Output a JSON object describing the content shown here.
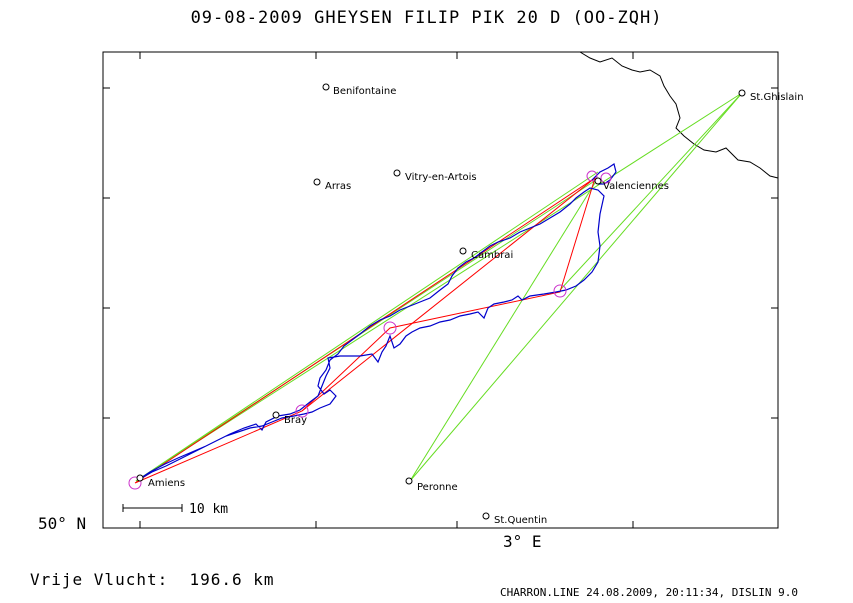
{
  "title": "09-08-2009   GHEYSEN FILIP   PIK 20 D (OO-ZQH)",
  "axis": {
    "lat_label": "50° N",
    "lon_label": "3° E"
  },
  "scale_bar": {
    "label": "10 km"
  },
  "flight": {
    "label": "Vrije Vlucht:",
    "distance": "196.6 km"
  },
  "footer": "CHARRON.LINE 24.08.2009, 20:11:34, DISLIN 9.0",
  "places": [
    {
      "name": "Benifontaine"
    },
    {
      "name": "Arras"
    },
    {
      "name": "Vitry-en-Artois"
    },
    {
      "name": "St.Ghislain"
    },
    {
      "name": "Valenciennes"
    },
    {
      "name": "Cambrai"
    },
    {
      "name": "Bray"
    },
    {
      "name": "Amiens"
    },
    {
      "name": "Peronne"
    },
    {
      "name": "St.Quentin"
    }
  ],
  "colors": {
    "track": "#0000cc",
    "task": "#ff0000",
    "sector": "#66dd22",
    "turnpoint": "#cc33cc",
    "border": "#000000"
  }
}
